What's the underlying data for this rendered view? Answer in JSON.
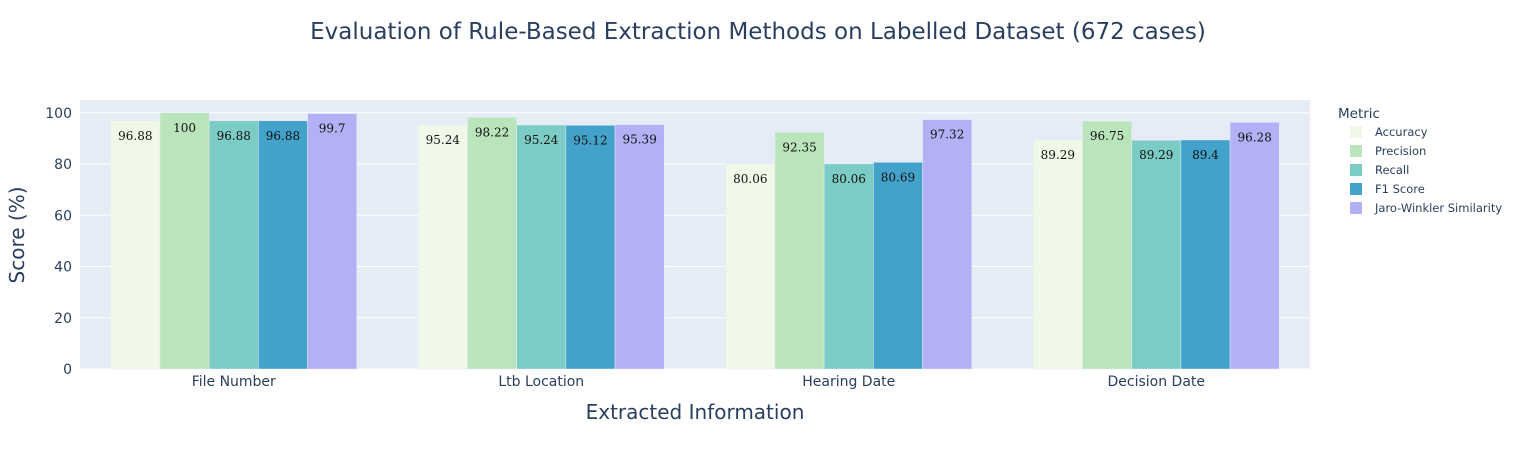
{
  "chart_data": {
    "type": "bar",
    "title": "Evaluation of Rule-Based Extraction Methods on Labelled Dataset (672 cases)",
    "xlabel": "Extracted Information",
    "ylabel": "Score (%)",
    "ylim": [
      0,
      105
    ],
    "yticks": [
      0,
      20,
      40,
      60,
      80,
      100
    ],
    "grid": true,
    "legend_title": "Metric",
    "legend_position": "right",
    "categories": [
      "File Number",
      "Ltb Location",
      "Hearing Date",
      "Decision Date"
    ],
    "series": [
      {
        "name": "Accuracy",
        "color": "#f0f9e8",
        "values": [
          96.88,
          95.24,
          80.06,
          89.29
        ]
      },
      {
        "name": "Precision",
        "color": "#bae4bc",
        "values": [
          100,
          98.22,
          92.35,
          96.75
        ]
      },
      {
        "name": "Recall",
        "color": "#7bccc4",
        "values": [
          96.88,
          95.24,
          80.06,
          89.29
        ]
      },
      {
        "name": "F1 Score",
        "color": "#43a2ca",
        "values": [
          96.88,
          95.12,
          80.69,
          89.4
        ]
      },
      {
        "name": "Jaro-Winkler Similarity",
        "color": "#b3b1f5",
        "values": [
          99.7,
          95.39,
          97.32,
          96.28
        ]
      }
    ]
  },
  "plot_background": "#e5ecf6",
  "grid_color": "#ffffff"
}
